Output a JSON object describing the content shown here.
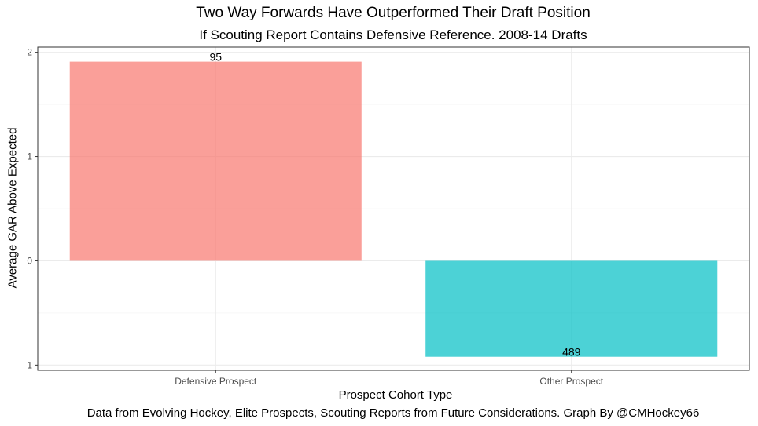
{
  "chart_data": {
    "type": "bar",
    "title": "Two Way Forwards Have Outperformed Their Draft Position",
    "subtitle": "If Scouting Report Contains Defensive Reference. 2008-14 Drafts",
    "xlabel": "Prospect Cohort Type",
    "ylabel": "Average GAR Above Expected",
    "caption": "Data from Evolving Hockey, Elite Prospects, Scouting Reports from Future Considerations. Graph By @CMHockey66",
    "categories": [
      "Defensive Prospect",
      "Other Prospect"
    ],
    "values": [
      1.91,
      -0.92
    ],
    "data_labels": [
      "95",
      "489"
    ],
    "colors": [
      "#F8766D",
      "#00BFC4"
    ],
    "bar_opacity": 0.7,
    "ylim": [
      -1.05,
      2.05
    ],
    "yticks": [
      -1,
      0,
      1,
      2
    ],
    "ytick_labels": [
      "-1",
      "0",
      "1",
      "2"
    ],
    "grid": true,
    "legend": "none"
  }
}
